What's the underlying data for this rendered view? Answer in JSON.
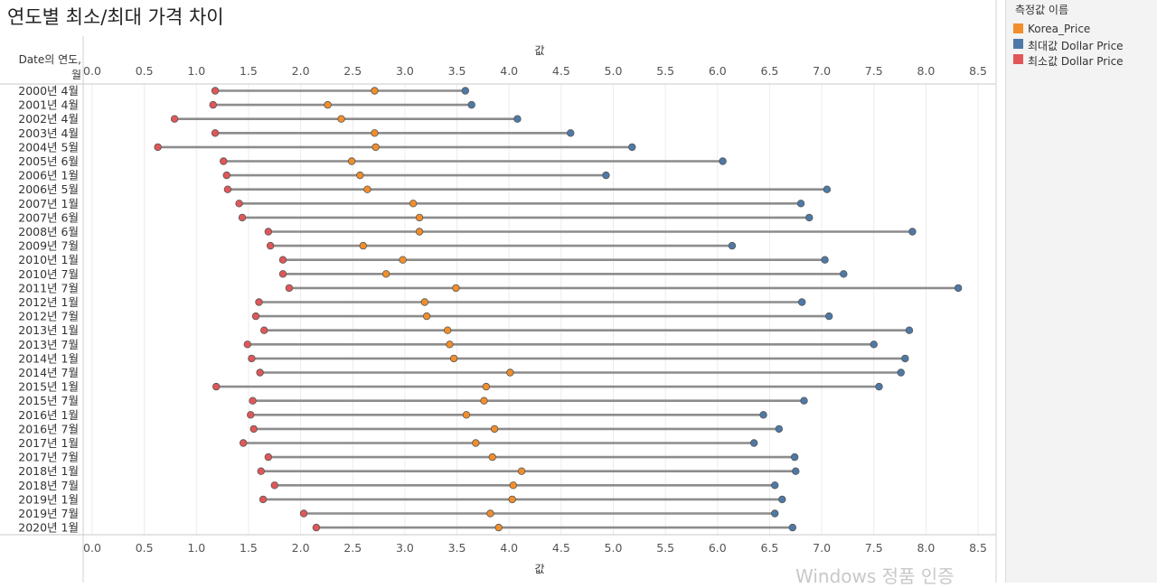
{
  "title": "연도별 최소/최대 가격 차이",
  "row_header": "Date의 연도, 월",
  "legend": {
    "title": "측정값 이름",
    "items": [
      {
        "label": "Korea_Price",
        "color": "#f28e2b"
      },
      {
        "label": "최대값 Dollar Price",
        "color": "#4e79a7"
      },
      {
        "label": "최소값 Dollar Price",
        "color": "#e15759"
      }
    ]
  },
  "watermark": "Windows 정품 인증",
  "chart_data": {
    "type": "dumbbell",
    "title": "연도별 최소/최대 가격 차이",
    "xlabel": "값",
    "ylabel": "Date의 연도, 월",
    "xlim": [
      0,
      8.8
    ],
    "xticks": [
      "0.0",
      "0.5",
      "1.0",
      "1.5",
      "2.0",
      "2.5",
      "3.0",
      "3.5",
      "4.0",
      "4.5",
      "5.0",
      "5.5",
      "6.0",
      "6.5",
      "7.0",
      "7.5",
      "8.0",
      "8.5"
    ],
    "grid": true,
    "categories": [
      "2000년 4월",
      "2001년 4월",
      "2002년 4월",
      "2003년 4월",
      "2004년 5월",
      "2005년 6월",
      "2006년 1월",
      "2006년 5월",
      "2007년 1월",
      "2007년 6월",
      "2008년 6월",
      "2009년 7월",
      "2010년 1월",
      "2010년 7월",
      "2011년 7월",
      "2012년 1월",
      "2012년 7월",
      "2013년 1월",
      "2013년 7월",
      "2014년 1월",
      "2014년 7월",
      "2015년 1월",
      "2015년 7월",
      "2016년 1월",
      "2016년 7월",
      "2017년 1월",
      "2017년 7월",
      "2018년 1월",
      "2018년 7월",
      "2019년 1월",
      "2019년 7월",
      "2020년 1월"
    ],
    "series": [
      {
        "name": "Korea_Price",
        "color": "#f28e2b",
        "values": [
          2.71,
          2.26,
          2.39,
          2.71,
          2.72,
          2.49,
          2.57,
          2.64,
          3.08,
          3.14,
          3.14,
          2.6,
          2.98,
          2.82,
          3.49,
          3.19,
          3.21,
          3.41,
          3.43,
          3.47,
          4.01,
          3.78,
          3.76,
          3.59,
          3.86,
          3.68,
          3.84,
          4.12,
          4.04,
          4.03,
          3.82,
          3.9
        ]
      },
      {
        "name": "최대값 Dollar Price",
        "color": "#4e79a7",
        "values": [
          3.58,
          3.64,
          4.08,
          4.59,
          5.18,
          6.05,
          4.93,
          7.05,
          6.8,
          6.88,
          7.87,
          6.14,
          7.03,
          7.21,
          8.31,
          6.81,
          7.07,
          7.84,
          7.5,
          7.8,
          7.76,
          7.55,
          6.83,
          6.44,
          6.59,
          6.35,
          6.74,
          6.75,
          6.55,
          6.62,
          6.55,
          6.72
        ]
      },
      {
        "name": "최소값 Dollar Price",
        "color": "#e15759",
        "values": [
          1.18,
          1.16,
          0.79,
          1.18,
          0.63,
          1.26,
          1.29,
          1.3,
          1.41,
          1.44,
          1.69,
          1.71,
          1.83,
          1.83,
          1.89,
          1.6,
          1.57,
          1.65,
          1.49,
          1.53,
          1.61,
          1.19,
          1.54,
          1.52,
          1.55,
          1.45,
          1.69,
          1.62,
          1.75,
          1.64,
          2.03,
          2.15
        ]
      }
    ]
  }
}
